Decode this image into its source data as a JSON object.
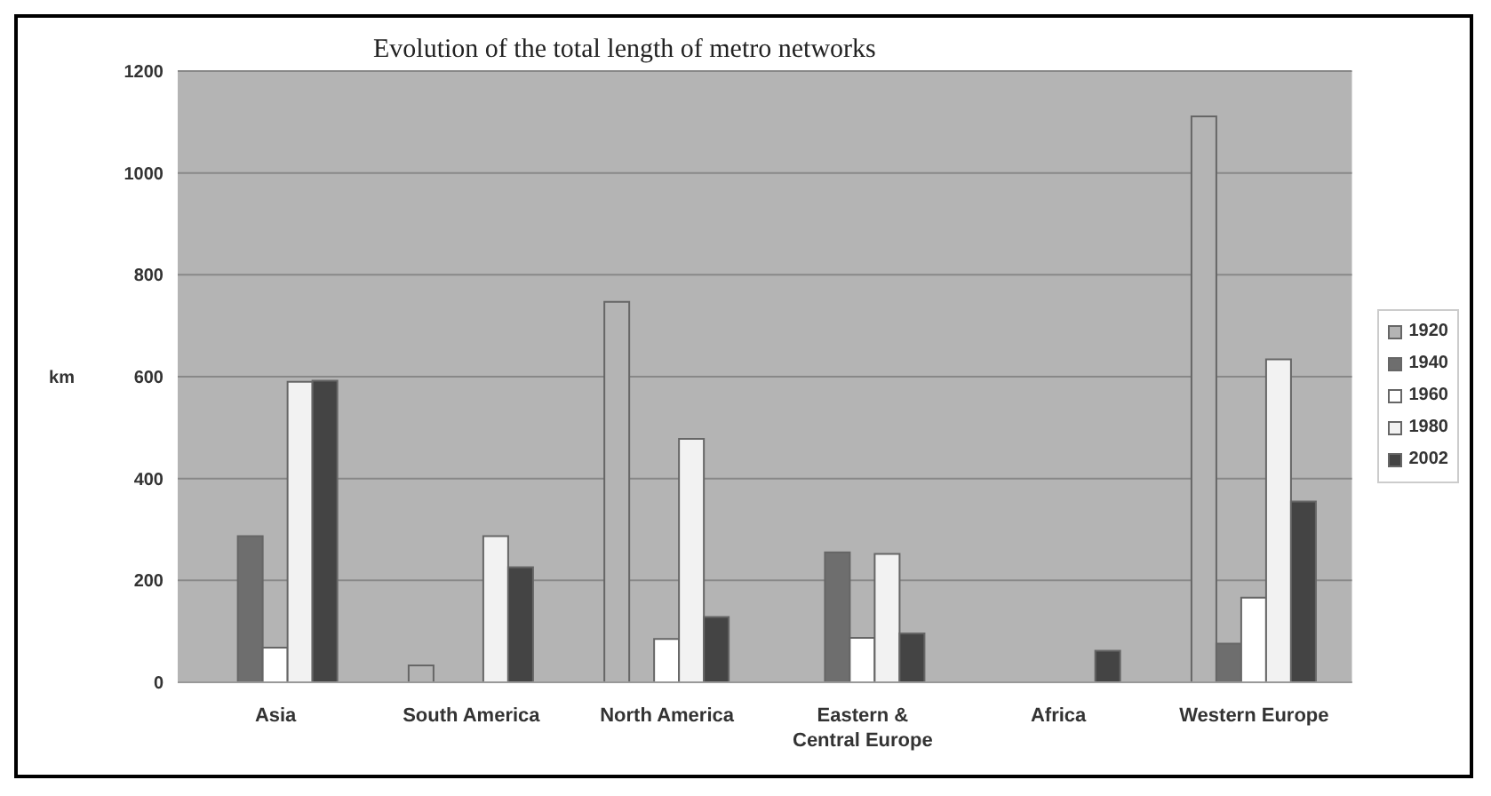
{
  "chart_data": {
    "type": "bar",
    "title": "Evolution of the total length of metro networks",
    "ylabel": "km",
    "categories": [
      "Asia",
      "South America",
      "North America",
      "Eastern & Central Europe",
      "Africa",
      "Western Europe"
    ],
    "series": [
      {
        "name": "1920",
        "color": "#b4b4b4",
        "values": [
          null,
          33,
          747,
          null,
          null,
          1111
        ]
      },
      {
        "name": "1940",
        "color": "#6e6e6e",
        "values": [
          287,
          null,
          null,
          255,
          null,
          76
        ]
      },
      {
        "name": "1960",
        "color": "#ffffff",
        "values": [
          68,
          null,
          85,
          87,
          null,
          166
        ]
      },
      {
        "name": "1980",
        "color": "#f2f2f2",
        "values": [
          590,
          287,
          478,
          252,
          null,
          634
        ]
      },
      {
        "name": "2002",
        "color": "#444444",
        "values": [
          592,
          226,
          128,
          96,
          62,
          355
        ]
      }
    ],
    "ylim": [
      0,
      1200
    ],
    "yticks": [
      0,
      200,
      400,
      600,
      800,
      1000,
      1200
    ],
    "grid": "y",
    "legend": "right"
  }
}
